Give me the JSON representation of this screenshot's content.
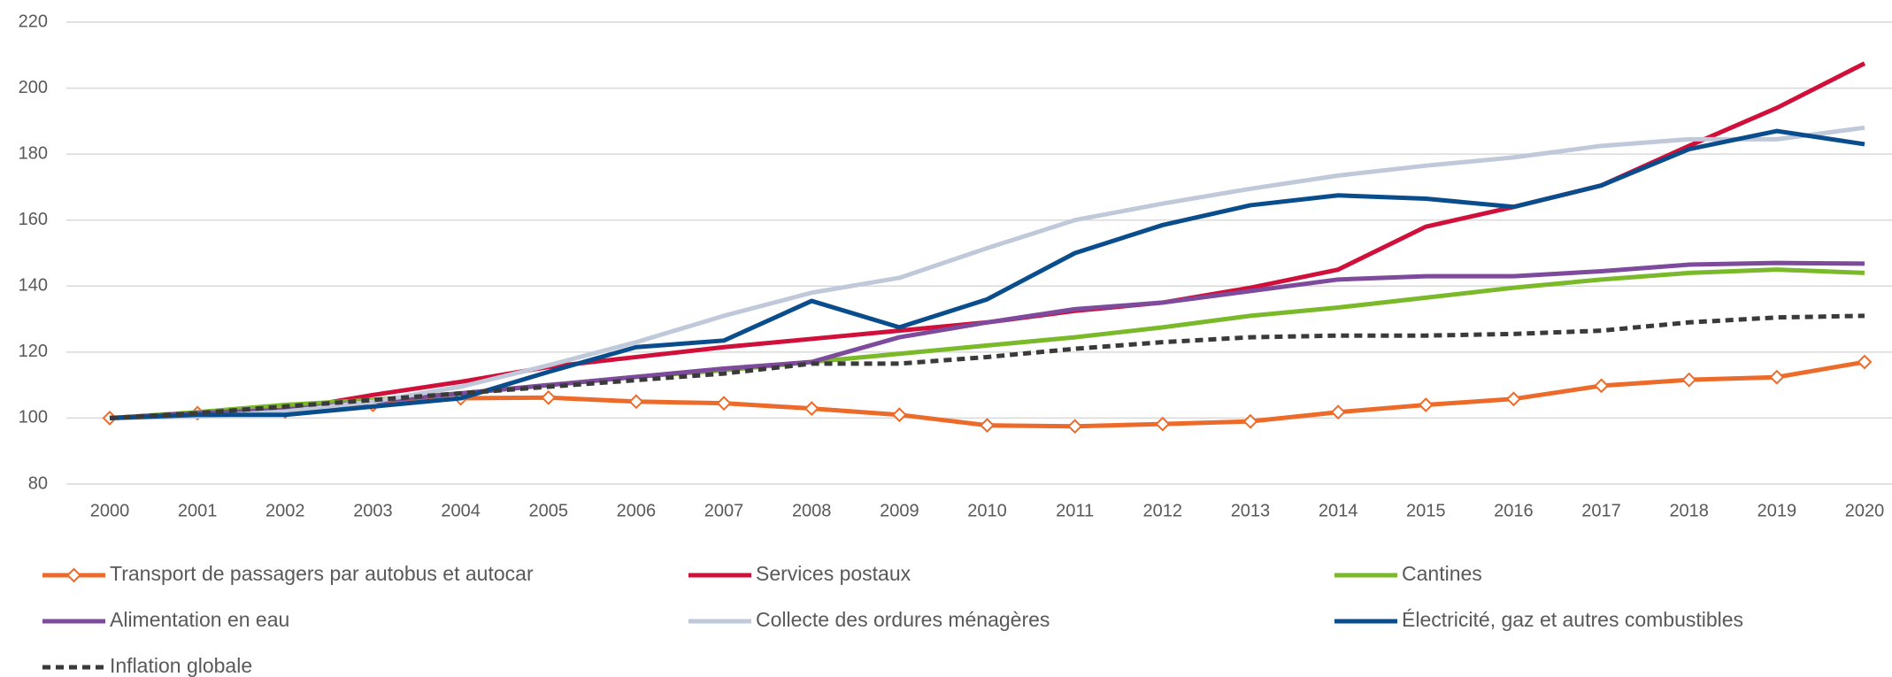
{
  "chart_data": {
    "type": "line",
    "categories": [
      "2000",
      "2001",
      "2002",
      "2003",
      "2004",
      "2005",
      "2006",
      "2007",
      "2008",
      "2009",
      "2010",
      "2011",
      "2012",
      "2013",
      "2014",
      "2015",
      "2016",
      "2017",
      "2018",
      "2019",
      "2020"
    ],
    "series": [
      {
        "name": "Transport de passagers par autobus et autocar",
        "color": "#ed6b2a",
        "marker": "diamond",
        "values": [
          100,
          101.5,
          102,
          104,
          106,
          106.2,
          105,
          104.5,
          102.9,
          101,
          97.8,
          97.5,
          98.2,
          99,
          101.8,
          104,
          105.8,
          109.8,
          111.6,
          112.4,
          117
        ]
      },
      {
        "name": "Services postaux",
        "color": "#d0103a",
        "values": [
          100,
          101.5,
          102.5,
          107,
          111,
          115.5,
          118.5,
          121.5,
          124,
          126.5,
          129,
          132.5,
          135,
          139.5,
          145,
          158,
          164,
          170.5,
          182.5,
          194,
          207.5
        ]
      },
      {
        "name": "Cantines",
        "color": "#7ab929",
        "values": [
          100,
          101.8,
          104,
          105.5,
          107.5,
          110,
          112.5,
          114.5,
          117,
          119.5,
          122,
          124.5,
          127.5,
          131,
          133.5,
          136.5,
          139.5,
          142,
          144,
          145,
          144
        ]
      },
      {
        "name": "Alimentation en eau",
        "color": "#7d4a9c",
        "values": [
          100,
          101.5,
          102.5,
          105,
          107.5,
          110,
          112.5,
          115,
          117,
          124.5,
          129,
          133,
          135,
          138.5,
          142,
          143,
          143,
          144.5,
          146.5,
          147,
          146.8
        ]
      },
      {
        "name": "Collecte des ordures ménagères",
        "color": "#bfc9d9",
        "values": [
          100,
          100.5,
          102,
          105,
          109.5,
          116,
          123,
          131,
          138,
          142.5,
          151.5,
          160,
          165,
          169.5,
          173.5,
          176.5,
          179,
          182.5,
          184.5,
          184.5,
          188
        ]
      },
      {
        "name": "Électricité, gaz et autres combustibles",
        "color": "#0a4d8c",
        "values": [
          100,
          101,
          101,
          103.5,
          106,
          114,
          121.5,
          123.5,
          135.5,
          127.5,
          136,
          150,
          158.5,
          164.5,
          167.5,
          166.5,
          164,
          170.5,
          181.5,
          187,
          183
        ]
      },
      {
        "name": "Inflation globale",
        "color": "#3a3a3a",
        "dashed": true,
        "values": [
          100,
          101.5,
          103.5,
          105.5,
          107.5,
          109.5,
          111.5,
          113.5,
          116.5,
          116.5,
          118.5,
          121,
          123,
          124.5,
          125,
          125,
          125.5,
          126.5,
          129,
          130.5,
          131
        ]
      }
    ],
    "ylim": [
      80,
      220
    ],
    "yticks": [
      80,
      100,
      120,
      140,
      160,
      180,
      200,
      220
    ],
    "grid": true,
    "legend_position": "bottom"
  }
}
